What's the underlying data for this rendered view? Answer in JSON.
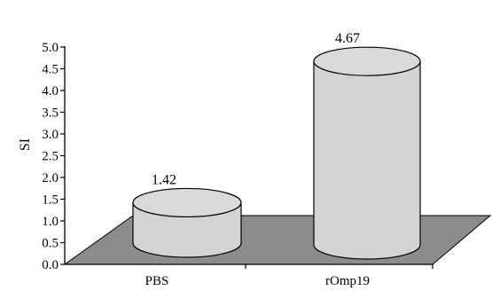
{
  "chart_data": {
    "type": "bar",
    "style": "3d-cylinder",
    "categories": [
      "PBS",
      "rOmp19"
    ],
    "values": [
      1.42,
      4.67
    ],
    "data_labels": [
      "1.42",
      "4.67"
    ],
    "ylabel": "SI",
    "xlabel": "",
    "title": "",
    "ylim": [
      0,
      5.0
    ],
    "yticks": [
      "0.0",
      "0.5",
      "1.0",
      "1.5",
      "2.0",
      "2.5",
      "3.0",
      "3.5",
      "4.0",
      "4.5",
      "5.0"
    ],
    "grid": false,
    "legend": "none",
    "colors": {
      "cylinder_fill": "#d3d3d3",
      "cylinder_top": "#d9d9d9",
      "floor_fill": "#8c8c8c",
      "outline": "#000000"
    }
  }
}
